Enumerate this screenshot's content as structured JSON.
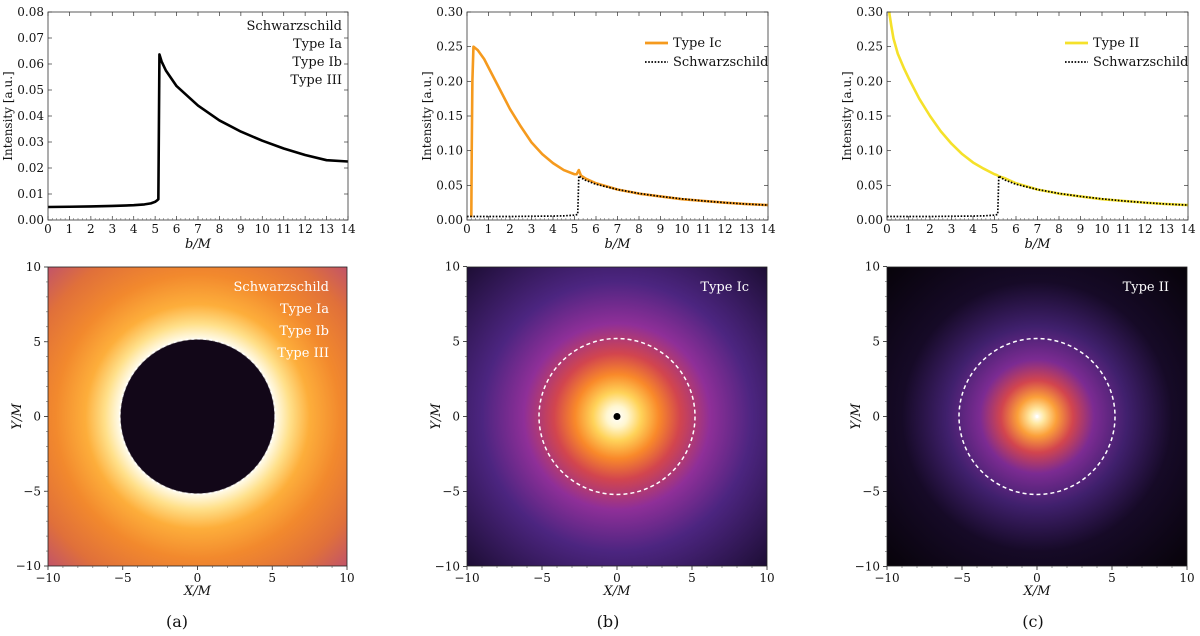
{
  "captions": [
    "(a)",
    "(b)",
    "(c)"
  ],
  "chart_data": [
    {
      "id": "a-top",
      "type": "line",
      "xlabel": "b/M",
      "ylabel": "Intensity [a.u.]",
      "xlim": [
        0,
        14
      ],
      "ylim": [
        0,
        0.08
      ],
      "xticks": [
        0,
        1,
        2,
        3,
        4,
        5,
        6,
        7,
        8,
        9,
        10,
        11,
        12,
        13,
        14
      ],
      "yticks": [
        0,
        0.01,
        0.02,
        0.03,
        0.04,
        0.05,
        0.06,
        0.07,
        0.08
      ],
      "ytick_labels": [
        "0.00",
        "0.01",
        "0.02",
        "0.03",
        "0.04",
        "0.05",
        "0.06",
        "0.07",
        "0.08"
      ],
      "legend_position": "top-right",
      "legend": [
        "Schwarzschild",
        "Type Ia",
        "Type Ib",
        "Type III"
      ],
      "series": [
        {
          "name": "Schwarzschild / Type Ia / Type Ib / Type III",
          "color": "#000000",
          "style": "solid",
          "x": [
            0,
            1,
            2,
            3,
            4,
            4.5,
            4.8,
            5.0,
            5.1,
            5.15,
            5.2,
            5.3,
            5.5,
            6,
            7,
            8,
            9,
            10,
            11,
            12,
            13,
            14
          ],
          "y": [
            0.005,
            0.0051,
            0.0052,
            0.0054,
            0.0057,
            0.006,
            0.0064,
            0.007,
            0.0076,
            0.008,
            0.0637,
            0.061,
            0.0575,
            0.0515,
            0.044,
            0.0383,
            0.034,
            0.0305,
            0.0275,
            0.025,
            0.023,
            0.0225
          ]
        }
      ]
    },
    {
      "id": "b-top",
      "type": "line",
      "xlabel": "b/M",
      "ylabel": "Intensity [a.u.]",
      "xlim": [
        0,
        14
      ],
      "ylim": [
        0,
        0.3
      ],
      "xticks": [
        0,
        1,
        2,
        3,
        4,
        5,
        6,
        7,
        8,
        9,
        10,
        11,
        12,
        13,
        14
      ],
      "yticks": [
        0,
        0.05,
        0.1,
        0.15,
        0.2,
        0.25,
        0.3
      ],
      "ytick_labels": [
        "0.00",
        "0.05",
        "0.10",
        "0.15",
        "0.20",
        "0.25",
        "0.30"
      ],
      "legend_position": "top-right",
      "legend": [
        "Type Ic",
        "Schwarzschild"
      ],
      "series": [
        {
          "name": "Type Ic",
          "color": "#f59a1e",
          "style": "solid",
          "x": [
            0.2,
            0.22,
            0.25,
            0.3,
            0.5,
            0.8,
            1,
            1.5,
            2,
            2.5,
            3,
            3.5,
            4,
            4.5,
            5,
            5.1,
            5.2,
            5.3,
            5.5,
            6,
            7,
            8,
            9,
            10,
            11,
            12,
            13,
            14
          ],
          "y": [
            0.004,
            0.1,
            0.2,
            0.25,
            0.245,
            0.232,
            0.22,
            0.19,
            0.16,
            0.135,
            0.112,
            0.095,
            0.082,
            0.072,
            0.066,
            0.066,
            0.072,
            0.064,
            0.06,
            0.053,
            0.044,
            0.038,
            0.034,
            0.03,
            0.0275,
            0.025,
            0.023,
            0.0215
          ]
        },
        {
          "name": "Schwarzschild",
          "color": "#000000",
          "style": "dotted",
          "x": [
            0,
            1,
            2,
            3,
            4,
            4.5,
            5.0,
            5.15,
            5.2,
            5.3,
            5.5,
            6,
            7,
            8,
            9,
            10,
            11,
            12,
            13,
            14
          ],
          "y": [
            0.005,
            0.005,
            0.005,
            0.0054,
            0.0057,
            0.006,
            0.007,
            0.008,
            0.0637,
            0.061,
            0.0575,
            0.0515,
            0.044,
            0.0383,
            0.034,
            0.0305,
            0.0275,
            0.025,
            0.023,
            0.0215
          ]
        }
      ]
    },
    {
      "id": "c-top",
      "type": "line",
      "xlabel": "b/M",
      "ylabel": "Intensity [a.u.]",
      "xlim": [
        0,
        14
      ],
      "ylim": [
        0,
        0.3
      ],
      "xticks": [
        0,
        1,
        2,
        3,
        4,
        5,
        6,
        7,
        8,
        9,
        10,
        11,
        12,
        13,
        14
      ],
      "yticks": [
        0,
        0.05,
        0.1,
        0.15,
        0.2,
        0.25,
        0.3
      ],
      "ytick_labels": [
        "0.00",
        "0.05",
        "0.10",
        "0.15",
        "0.20",
        "0.25",
        "0.30"
      ],
      "legend_position": "top-right",
      "legend": [
        "Type II",
        "Schwarzschild"
      ],
      "series": [
        {
          "name": "Type II",
          "color": "#f5e12a",
          "style": "solid",
          "x": [
            0.1,
            0.2,
            0.3,
            0.5,
            0.8,
            1,
            1.5,
            2,
            2.5,
            3,
            3.5,
            4,
            4.5,
            5,
            5.1,
            5.2,
            5.3,
            5.5,
            6,
            7,
            8,
            9,
            10,
            11,
            12,
            13,
            14
          ],
          "y": [
            0.3,
            0.28,
            0.262,
            0.24,
            0.218,
            0.205,
            0.175,
            0.15,
            0.128,
            0.11,
            0.095,
            0.083,
            0.074,
            0.066,
            0.065,
            0.063,
            0.062,
            0.06,
            0.053,
            0.044,
            0.038,
            0.034,
            0.03,
            0.0275,
            0.025,
            0.023,
            0.0215
          ]
        },
        {
          "name": "Schwarzschild",
          "color": "#000000",
          "style": "dotted",
          "x": [
            0,
            1,
            2,
            3,
            4,
            4.5,
            5.0,
            5.15,
            5.2,
            5.3,
            5.5,
            6,
            7,
            8,
            9,
            10,
            11,
            12,
            13,
            14
          ],
          "y": [
            0.005,
            0.005,
            0.005,
            0.0054,
            0.0057,
            0.006,
            0.007,
            0.008,
            0.0637,
            0.061,
            0.0575,
            0.0515,
            0.044,
            0.0383,
            0.034,
            0.0305,
            0.0275,
            0.025,
            0.023,
            0.0215
          ]
        }
      ]
    },
    {
      "id": "a-bottom",
      "type": "heatmap",
      "xlabel": "X/M",
      "ylabel": "Y/M",
      "xlim": [
        -10,
        10
      ],
      "ylim": [
        -10,
        10
      ],
      "ticks": [
        -10,
        -5,
        0,
        5,
        10
      ],
      "tick_labels": [
        "−10",
        "−5",
        "0",
        "5",
        "10"
      ],
      "legend_position": "top-right",
      "legend": [
        "Schwarzschild",
        "Type Ia",
        "Type Ib",
        "Type III"
      ],
      "dark_disk_radius": 5.2,
      "colorstops": [
        {
          "r": 0,
          "color": "#110617"
        },
        {
          "r": 5.1,
          "color": "#120718"
        },
        {
          "r": 5.2,
          "color": "#fffbea"
        },
        {
          "r": 6.2,
          "color": "#ffe08a"
        },
        {
          "r": 7.5,
          "color": "#fdae3b"
        },
        {
          "r": 9.5,
          "color": "#f2892d"
        },
        {
          "r": 12,
          "color": "#e0703a"
        },
        {
          "r": 14.2,
          "color": "#c1536a"
        }
      ]
    },
    {
      "id": "b-bottom",
      "type": "heatmap",
      "xlabel": "X/M",
      "ylabel": "Y/M",
      "xlim": [
        -10,
        10
      ],
      "ylim": [
        -10,
        10
      ],
      "ticks": [
        -10,
        -5,
        0,
        5,
        10
      ],
      "tick_labels": [
        "−10",
        "−5",
        "0",
        "5",
        "10"
      ],
      "legend_position": "top-right",
      "legend": [
        "Type Ic"
      ],
      "critical_curve_radius": 5.2,
      "central_dot": "black",
      "colorstops": [
        {
          "r": 0,
          "color": "#ffffff"
        },
        {
          "r": 0.7,
          "color": "#fff6cf"
        },
        {
          "r": 1.6,
          "color": "#ffd35a"
        },
        {
          "r": 2.8,
          "color": "#f9892a"
        },
        {
          "r": 4.2,
          "color": "#d2454e"
        },
        {
          "r": 6.2,
          "color": "#8f2f98"
        },
        {
          "r": 9.0,
          "color": "#4c2580"
        },
        {
          "r": 14.2,
          "color": "#1c0d33"
        }
      ]
    },
    {
      "id": "c-bottom",
      "type": "heatmap",
      "xlabel": "X/M",
      "ylabel": "Y/M",
      "xlim": [
        -10,
        10
      ],
      "ylim": [
        -10,
        10
      ],
      "ticks": [
        -10,
        -5,
        0,
        5,
        10
      ],
      "tick_labels": [
        "−10",
        "−5",
        "0",
        "5",
        "10"
      ],
      "legend_position": "top-right",
      "legend": [
        "Type II"
      ],
      "critical_curve_radius": 5.2,
      "central_dot": "white",
      "colorstops": [
        {
          "r": 0,
          "color": "#ffffff"
        },
        {
          "r": 0.5,
          "color": "#ffe7a0"
        },
        {
          "r": 1.3,
          "color": "#fba03a"
        },
        {
          "r": 2.4,
          "color": "#d2454e"
        },
        {
          "r": 3.8,
          "color": "#7c2b92"
        },
        {
          "r": 6.0,
          "color": "#40206d"
        },
        {
          "r": 9.0,
          "color": "#160a27"
        },
        {
          "r": 14.2,
          "color": "#070309"
        }
      ]
    }
  ]
}
